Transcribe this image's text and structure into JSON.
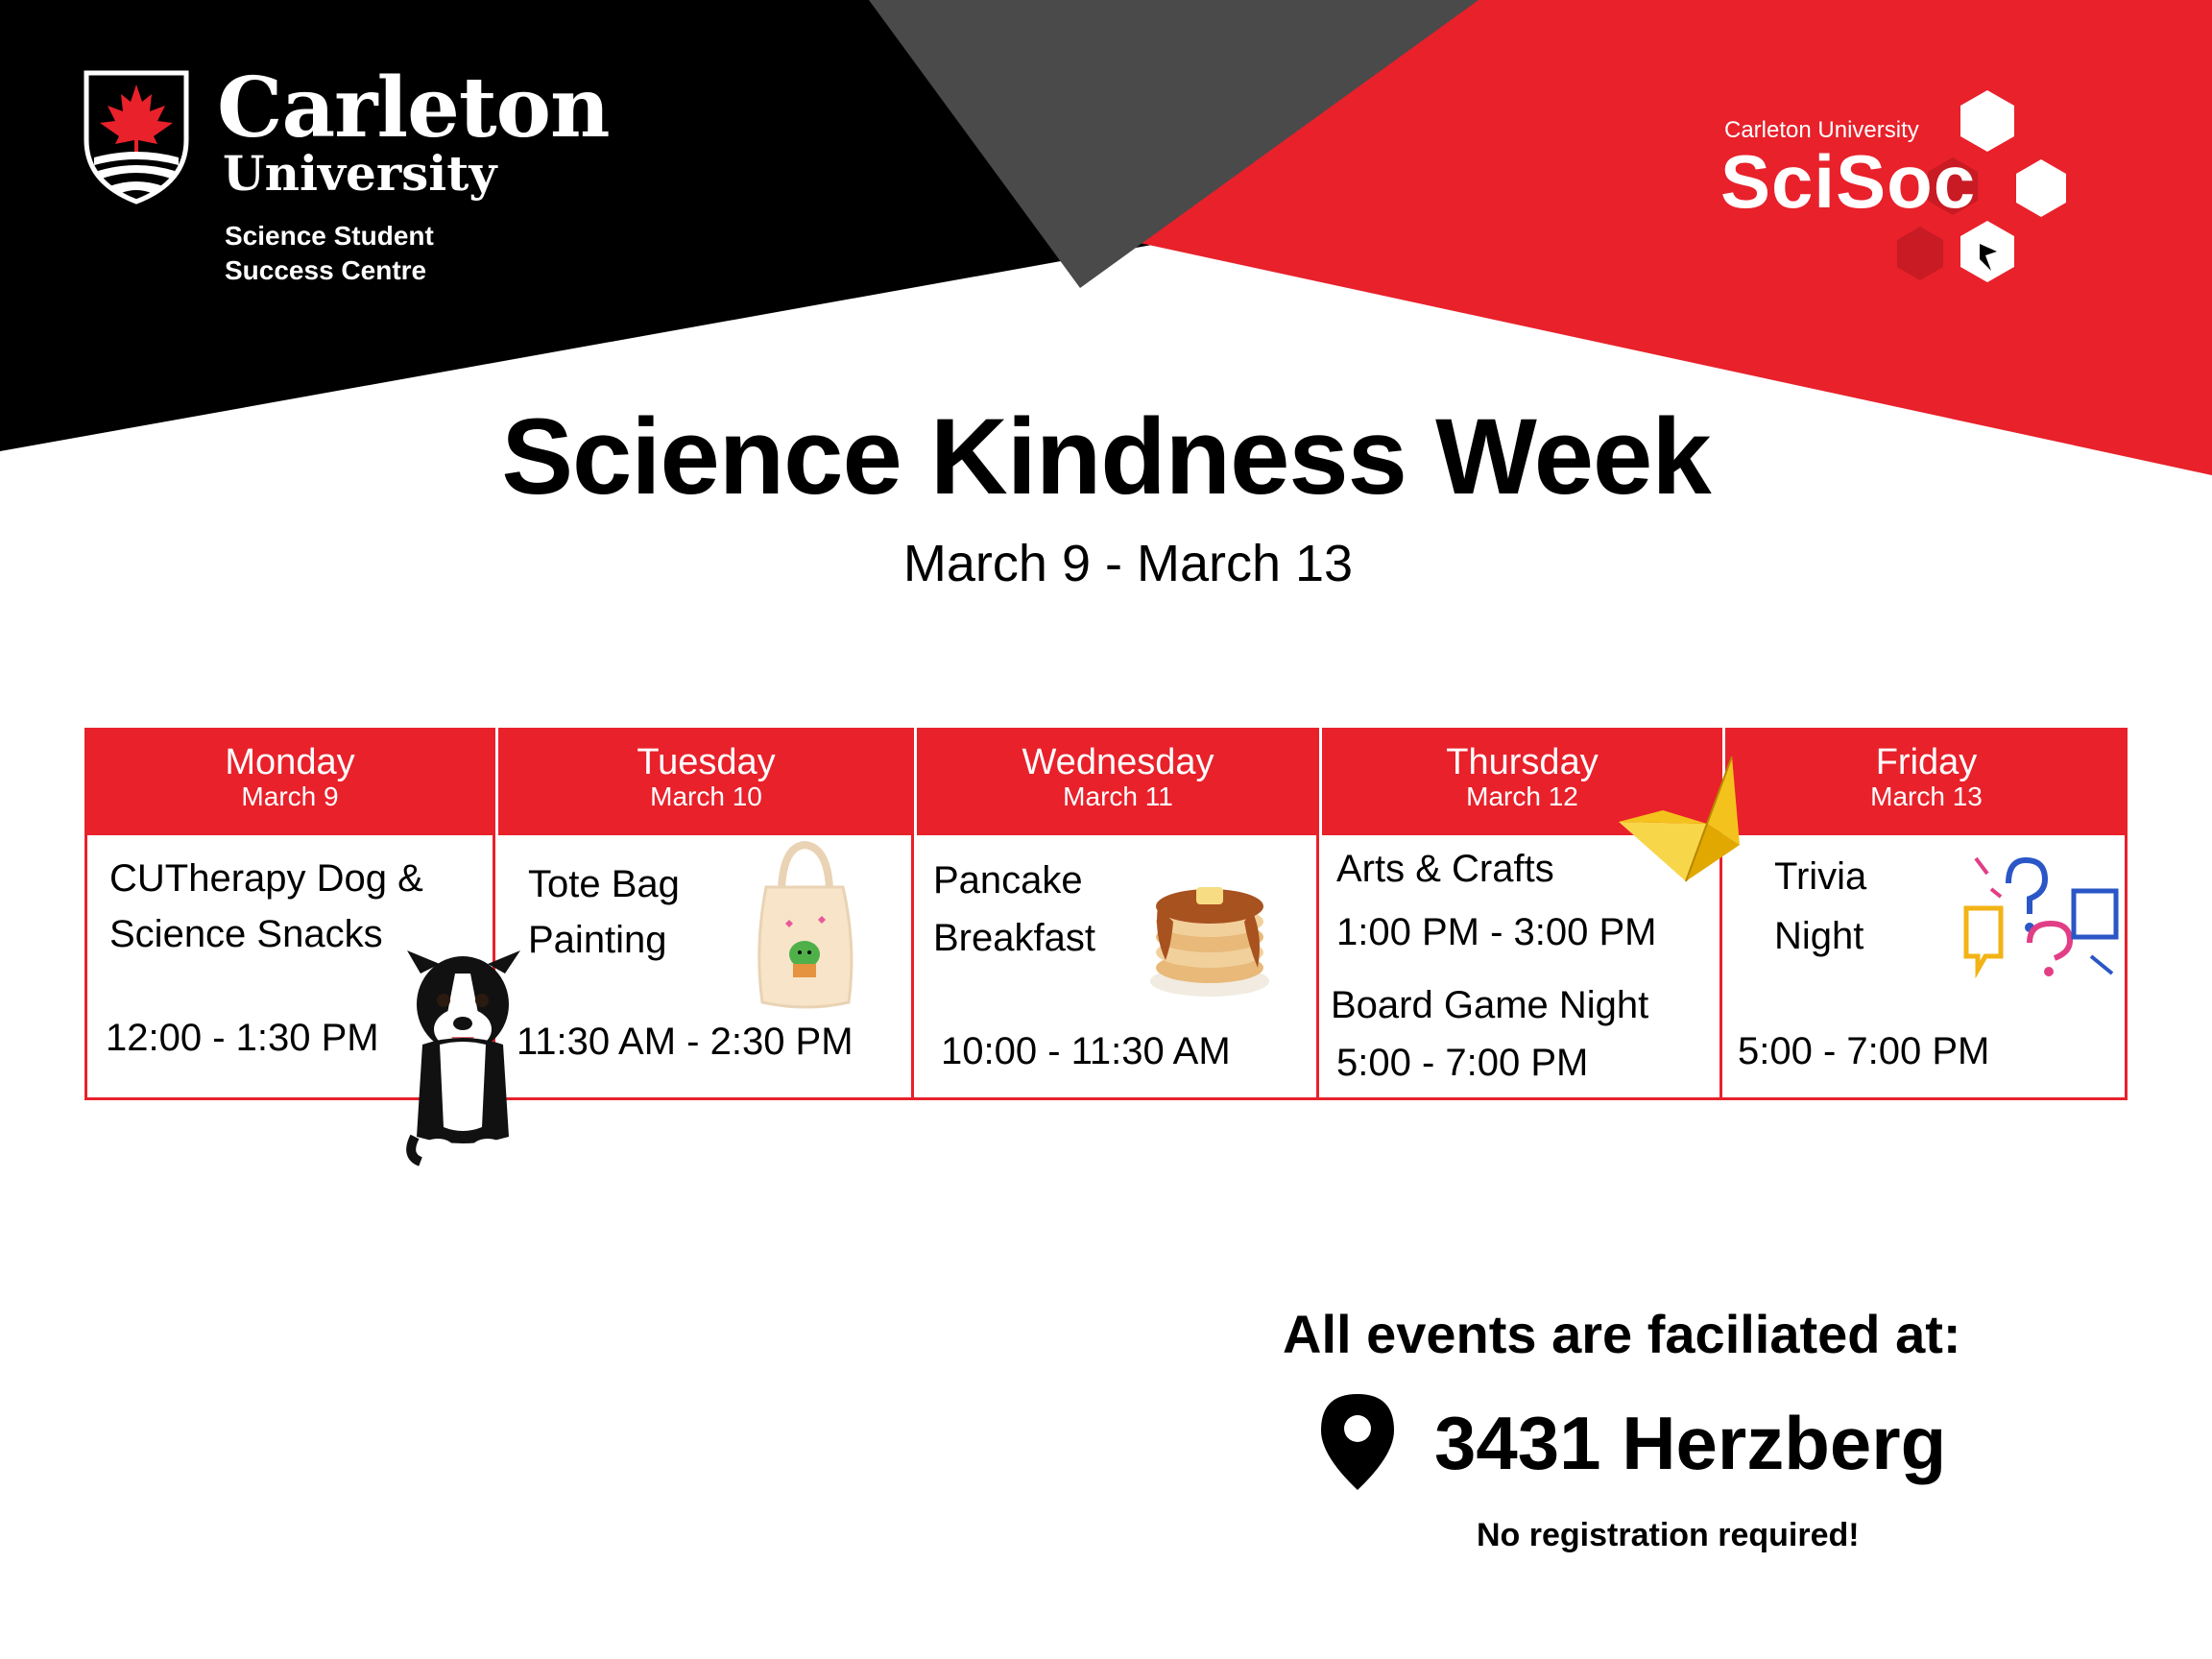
{
  "colors": {
    "red": "#e8212b",
    "black": "#000000",
    "gray": "#4a4a4a",
    "white": "#ffffff"
  },
  "header": {
    "carleton_logo": {
      "name": "Carleton",
      "subname": "University",
      "unit_line1": "Science Student",
      "unit_line2": "Success Centre"
    },
    "scisoc_logo": {
      "top": "Carleton University",
      "name": "SciSoc"
    }
  },
  "event": {
    "title": "Science Kindness Week",
    "dates": "March 9 - March 13"
  },
  "schedule": [
    {
      "day": "Monday",
      "date": "March 9",
      "lines": [
        "CUTherapy Dog &",
        "Science Snacks"
      ],
      "time": "12:00 - 1:30 PM",
      "art": "puppy-illustration"
    },
    {
      "day": "Tuesday",
      "date": "March 10",
      "lines": [
        "Tote Bag",
        "Painting"
      ],
      "time": "11:30 AM - 2:30 PM",
      "art": "tote-bag-illustration"
    },
    {
      "day": "Wednesday",
      "date": "March 11",
      "lines": [
        "Pancake",
        "Breakfast"
      ],
      "time": "10:00 - 11:30 AM",
      "art": "pancake-illustration"
    },
    {
      "day": "Thursday",
      "date": "March 12",
      "events": [
        {
          "name": "Arts & Crafts",
          "time": "1:00 PM - 3:00 PM"
        },
        {
          "name": "Board Game Night",
          "time": "5:00 - 7:00 PM"
        }
      ],
      "art": "origami-bird-illustration"
    },
    {
      "day": "Friday",
      "date": "March 13",
      "lines": [
        "Trivia",
        "Night"
      ],
      "time": "5:00 - 7:00 PM",
      "art": "question-marks-illustration"
    }
  ],
  "footer": {
    "heading": "All events are faciliated at:",
    "location": "3431 Herzberg",
    "note": "No registration required!",
    "icon": "location-pin-icon"
  }
}
